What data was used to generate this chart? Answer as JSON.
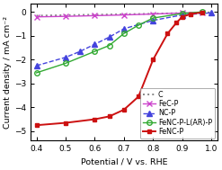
{
  "title": "",
  "xlabel": "Potential / V vs. RHE",
  "ylabel": "Current density / mA cm⁻²",
  "xlim": [
    0.38,
    1.02
  ],
  "ylim": [
    -5.4,
    0.35
  ],
  "xticks": [
    0.4,
    0.5,
    0.6,
    0.7,
    0.8,
    0.9,
    1.0
  ],
  "yticks": [
    0,
    -1,
    -2,
    -3,
    -4,
    -5
  ],
  "series": {
    "C": {
      "x": [
        0.4,
        0.5,
        0.6,
        0.7,
        0.8,
        0.9,
        0.97,
        1.0
      ],
      "y": [
        -0.15,
        -0.13,
        -0.11,
        -0.09,
        -0.07,
        -0.04,
        -0.02,
        -0.01
      ],
      "color": "#888888",
      "linestyle": "dotted",
      "marker": null,
      "markersize": 0,
      "linewidth": 1.4
    },
    "FeC-P": {
      "x": [
        0.4,
        0.5,
        0.6,
        0.7,
        0.8,
        0.9,
        0.97
      ],
      "y": [
        -0.2,
        -0.18,
        -0.15,
        -0.12,
        -0.08,
        -0.04,
        -0.01
      ],
      "color": "#cc44cc",
      "linestyle": "solid",
      "marker": "x",
      "markersize": 4,
      "linewidth": 1.0
    },
    "NC-P": {
      "x": [
        0.4,
        0.5,
        0.55,
        0.6,
        0.65,
        0.7,
        0.8,
        0.9,
        1.0
      ],
      "y": [
        -2.25,
        -1.9,
        -1.65,
        -1.35,
        -1.05,
        -0.7,
        -0.35,
        -0.12,
        -0.03
      ],
      "color": "#4444dd",
      "linestyle": "dashed",
      "marker": "^",
      "markersize": 4,
      "linewidth": 1.0
    },
    "FeNC-P-L(AR)-P": {
      "x": [
        0.4,
        0.5,
        0.6,
        0.65,
        0.7,
        0.75,
        0.8,
        0.9,
        0.97
      ],
      "y": [
        -2.55,
        -2.15,
        -1.65,
        -1.4,
        -0.9,
        -0.55,
        -0.25,
        -0.06,
        0.01
      ],
      "color": "#33aa33",
      "linestyle": "solid",
      "marker": "o",
      "markersize": 4,
      "markerfacecolor": "none",
      "linewidth": 1.0
    },
    "FeNC-P": {
      "x": [
        0.4,
        0.5,
        0.6,
        0.65,
        0.7,
        0.75,
        0.8,
        0.85,
        0.88,
        0.9,
        0.93,
        0.97
      ],
      "y": [
        -4.75,
        -4.65,
        -4.5,
        -4.38,
        -4.1,
        -3.55,
        -2.0,
        -0.9,
        -0.45,
        -0.2,
        -0.08,
        -0.01
      ],
      "color": "#cc1111",
      "linestyle": "solid",
      "marker": "s",
      "markersize": 3.5,
      "linewidth": 1.4
    }
  },
  "legend_loc": "lower right",
  "legend_fontsize": 5.8,
  "tick_fontsize": 6.5,
  "label_fontsize": 6.8,
  "background_color": "#f0f0f0"
}
